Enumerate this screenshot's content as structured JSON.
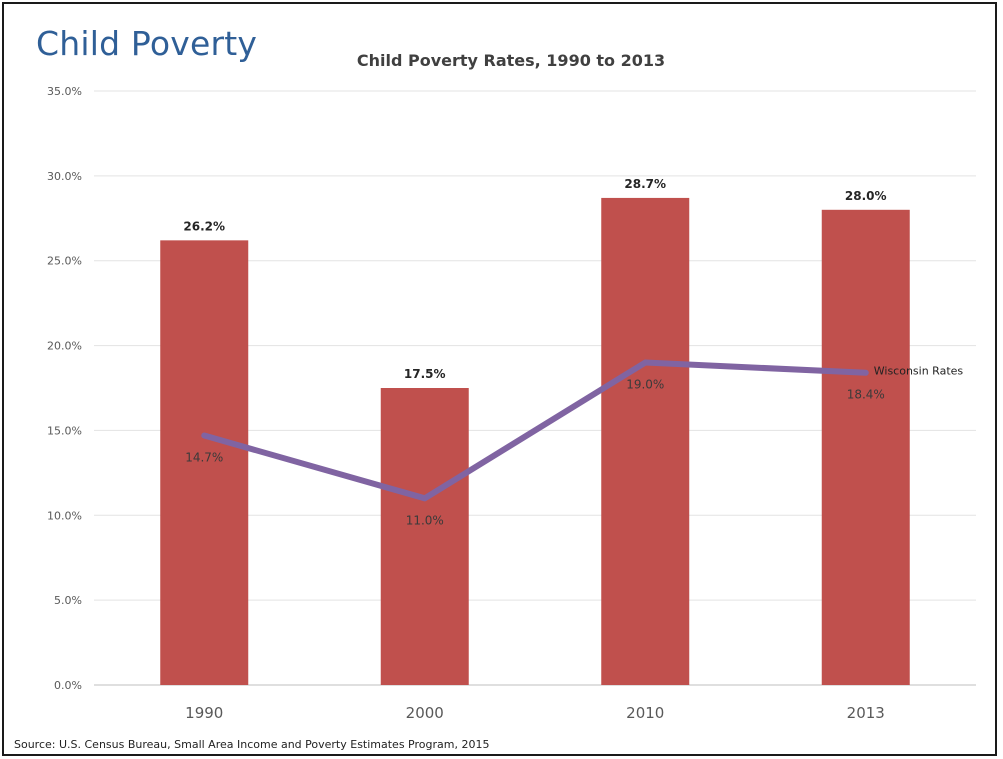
{
  "slide": {
    "title": "Child Poverty",
    "source": "Source: U.S. Census Bureau, Small Area Income and Poverty Estimates Program, 2015"
  },
  "chart_data": {
    "type": "bar",
    "title": "Child Poverty Rates, 1990 to 2013",
    "xlabel": "",
    "ylabel": "",
    "ylim": [
      0,
      35
    ],
    "ytick_step": 5,
    "ytick_format": "0.0%",
    "grid": true,
    "categories": [
      "1990",
      "2000",
      "2010",
      "2013"
    ],
    "series": [
      {
        "kind": "bar",
        "values": [
          26.2,
          17.5,
          28.7,
          28.0
        ],
        "labels": [
          "26.2%",
          "17.5%",
          "28.7%",
          "28.0%"
        ],
        "color": "#c0504d"
      },
      {
        "kind": "line",
        "name": "Wisconsin Rates",
        "values": [
          14.7,
          11.0,
          19.0,
          18.4
        ],
        "labels": [
          "14.7%",
          "11.0%",
          "19.0%",
          "18.4%"
        ],
        "color": "#8064a2"
      }
    ]
  }
}
